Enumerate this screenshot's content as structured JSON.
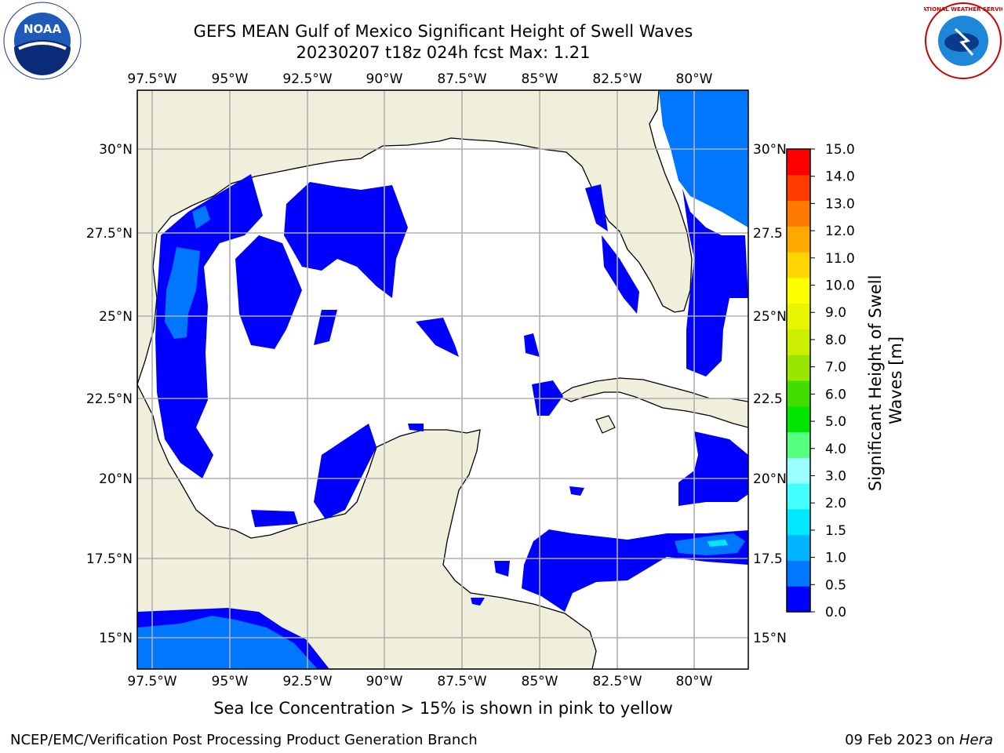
{
  "header": {
    "title_line1": "GEFS MEAN Gulf of Mexico Significant Height of Swell Waves",
    "title_line2": "20230207 t18z 024h fcst   Max: 1.21"
  },
  "map": {
    "lon_labels": [
      "97.5°W",
      "95°W",
      "92.5°W",
      "90°W",
      "87.5°W",
      "85°W",
      "82.5°W",
      "80°W"
    ],
    "lat_labels_left": [
      "30°N",
      "27.5°N",
      "25°N",
      "22.5°N",
      "20°N",
      "17.5°N",
      "15°N"
    ],
    "lat_labels_right": [
      "30°N",
      "27.5",
      "25°N",
      "22.5",
      "20°N",
      "17.5",
      "15°N"
    ],
    "land_color": "#efefdc",
    "grid_color": "#b0b0b0"
  },
  "colorbar": {
    "label": "Significant Height of Swell Waves [m]",
    "tick_labels": [
      "0.0",
      "0.5",
      "1.0",
      "1.5",
      "2.0",
      "3.0",
      "4.0",
      "5.0",
      "6.0",
      "7.0",
      "8.0",
      "9.0",
      "10.0",
      "11.0",
      "12.0",
      "13.0",
      "14.0",
      "15.0"
    ],
    "colors": [
      "#0000ff",
      "#0077ff",
      "#00b4ff",
      "#00e8ff",
      "#44ffff",
      "#99ffff",
      "#55ff80",
      "#00e600",
      "#44dd00",
      "#99e600",
      "#ccee00",
      "#e8f500",
      "#ffff00",
      "#ffd500",
      "#ffa800",
      "#ff7a00",
      "#ff3c00",
      "#ff0000"
    ]
  },
  "subtitle": "Sea Ice Concentration > 15% is shown in pink to yellow",
  "footer": {
    "left": "NCEP/EMC/Verification Post Processing Product Generation Branch",
    "date": "09 Feb 2023 on ",
    "host": "Hera"
  },
  "logos": {
    "noaa": "NOAA",
    "nws_text": "NATIONAL WEATHER SERVICE"
  }
}
